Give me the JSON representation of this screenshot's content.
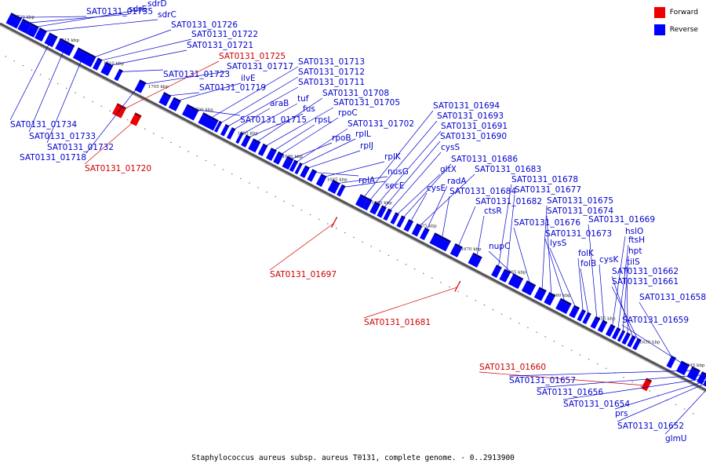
{
  "legend": {
    "forward_label": "Forward",
    "reverse_label": "Reverse",
    "forward_color": "#ee0000",
    "reverse_color": "#0000ff"
  },
  "caption": "Staphylococcus aureus subsp. aureus T0131, complete genome. - 0..2913900",
  "track": {
    "start_kbp": 1721,
    "end_kbp": 1642,
    "tick_labels": [
      {
        "kbp": 1720,
        "text": "1720 kbp"
      },
      {
        "kbp": 1715,
        "text": "1715 kbp"
      },
      {
        "kbp": 1710,
        "text": "1710 kbp"
      },
      {
        "kbp": 1705,
        "text": "1705 kbp"
      },
      {
        "kbp": 1700,
        "text": "1700 kbp"
      },
      {
        "kbp": 1695,
        "text": "1695 kbp"
      },
      {
        "kbp": 1690,
        "text": "1690 kbp"
      },
      {
        "kbp": 1685,
        "text": "1685 kbp"
      },
      {
        "kbp": 1680,
        "text": "1680 kbp"
      },
      {
        "kbp": 1675,
        "text": "1675 kbp"
      },
      {
        "kbp": 1670,
        "text": "1670 kbp"
      },
      {
        "kbp": 1665,
        "text": "1665 kbp"
      },
      {
        "kbp": 1660,
        "text": "1660 kbp"
      },
      {
        "kbp": 1655,
        "text": "1655 kbp"
      },
      {
        "kbp": 1650,
        "text": "1650 kbp"
      },
      {
        "kbp": 1645,
        "text": "1645 kbp"
      }
    ]
  },
  "genes": [
    {
      "kbp": 1720.5,
      "len": 1.2,
      "strand": "reverse",
      "label": "SAT0131_01735"
    },
    {
      "kbp": 1719.2,
      "len": 1.0,
      "strand": "reverse",
      "label": "sdrE"
    },
    {
      "kbp": 1718.2,
      "len": 0.8,
      "strand": "reverse",
      "label": "sdrD"
    },
    {
      "kbp": 1717.3,
      "len": 0.8,
      "strand": "reverse",
      "label": "sdrC"
    },
    {
      "kbp": 1716.2,
      "len": 0.9,
      "strand": "reverse",
      "label": "SAT0131_01734"
    },
    {
      "kbp": 1715.0,
      "len": 1.6,
      "strand": "reverse",
      "label": "SAT0131_01733"
    },
    {
      "kbp": 1713.0,
      "len": 1.6,
      "strand": "reverse",
      "label": "SAT0131_01732"
    },
    {
      "kbp": 1711.5,
      "len": 0.5,
      "strand": "reverse",
      "label": "SAT0131_01726"
    },
    {
      "kbp": 1710.8,
      "len": 0.5,
      "strand": "reverse",
      "label": "SAT0131_01722"
    },
    {
      "kbp": 1709.9,
      "len": 0.8,
      "strand": "reverse",
      "label": "SAT0131_01721"
    },
    {
      "kbp": 1708.4,
      "len": 0.4,
      "strand": "reverse",
      "label": "SAT0131_01723"
    },
    {
      "kbp": 1707.0,
      "len": 1.0,
      "strand": "forward",
      "label": "SAT0131_01725"
    },
    {
      "kbp": 1706.1,
      "len": 0.5,
      "strand": "reverse",
      "label": "SAT0131_01718"
    },
    {
      "kbp": 1705.7,
      "len": 0.3,
      "strand": "reverse",
      "label": "SAT0131_01717"
    },
    {
      "kbp": 1705.0,
      "len": 0.7,
      "strand": "forward",
      "label": "SAT0131_01720"
    },
    {
      "kbp": 1703.4,
      "len": 0.8,
      "strand": "reverse",
      "label": "SAT0131_01719"
    },
    {
      "kbp": 1702.3,
      "len": 0.8,
      "strand": "reverse",
      "label": "ilvE"
    },
    {
      "kbp": 1700.8,
      "len": 1.3,
      "strand": "reverse",
      "label": "SAT0131_01715"
    },
    {
      "kbp": 1699.0,
      "len": 1.7,
      "strand": "reverse",
      "label": "SAT0131_01713"
    },
    {
      "kbp": 1697.2,
      "len": 0.3,
      "strand": "reverse",
      "label": "SAT0131_01712"
    },
    {
      "kbp": 1696.5,
      "len": 0.4,
      "strand": "reverse",
      "label": "SAT0131_01711"
    },
    {
      "kbp": 1695.8,
      "len": 0.4,
      "strand": "reverse",
      "label": "araB"
    },
    {
      "kbp": 1694.8,
      "len": 0.3,
      "strand": "reverse",
      "label": "tuf"
    },
    {
      "kbp": 1694.2,
      "len": 0.5,
      "strand": "reverse",
      "label": "fus"
    },
    {
      "kbp": 1693.4,
      "len": 0.8,
      "strand": "reverse",
      "label": "SAT0131_01708"
    },
    {
      "kbp": 1692.3,
      "len": 0.5,
      "strand": "reverse",
      "label": "SAT0131_01705"
    },
    {
      "kbp": 1691.4,
      "len": 0.6,
      "strand": "reverse",
      "label": "rpsL"
    },
    {
      "kbp": 1690.6,
      "len": 0.6,
      "strand": "reverse",
      "label": "rpoC"
    },
    {
      "kbp": 1689.6,
      "len": 0.7,
      "strand": "reverse",
      "label": "rpoB"
    },
    {
      "kbp": 1688.8,
      "len": 0.4,
      "strand": "reverse",
      "label": "SAT0131_01702"
    },
    {
      "kbp": 1688.2,
      "len": 0.3,
      "strand": "reverse",
      "label": "rplL"
    },
    {
      "kbp": 1687.6,
      "len": 0.5,
      "strand": "reverse",
      "label": "rplJ"
    },
    {
      "kbp": 1686.8,
      "len": 0.5,
      "strand": "reverse",
      "label": "rplA"
    },
    {
      "kbp": 1685.8,
      "len": 0.6,
      "strand": "reverse",
      "label": "rplK"
    },
    {
      "kbp": 1684.5,
      "len": 0.8,
      "strand": "reverse",
      "label": "nusG"
    },
    {
      "kbp": 1683.5,
      "len": 0.4,
      "strand": "reverse",
      "label": "secE"
    },
    {
      "kbp": 1682.5,
      "len": 0.1,
      "strand": "forward",
      "label": "SAT0131_01697"
    },
    {
      "kbp": 1681.4,
      "len": 0.8,
      "strand": "reverse",
      "label": "SAT0131_01694"
    },
    {
      "kbp": 1680.6,
      "len": 0.5,
      "strand": "reverse",
      "label": "SAT0131_01693"
    },
    {
      "kbp": 1679.8,
      "len": 0.6,
      "strand": "reverse",
      "label": "SAT0131_01691"
    },
    {
      "kbp": 1679.0,
      "len": 0.5,
      "strand": "reverse",
      "label": "SAT0131_01690"
    },
    {
      "kbp": 1678.3,
      "len": 0.4,
      "strand": "reverse",
      "label": "cysS"
    },
    {
      "kbp": 1677.5,
      "len": 0.4,
      "strand": "reverse",
      "label": "gltX"
    },
    {
      "kbp": 1676.8,
      "len": 0.4,
      "strand": "reverse",
      "label": "SAT0131_01686"
    },
    {
      "kbp": 1676.0,
      "len": 0.5,
      "strand": "reverse",
      "label": "cysE"
    },
    {
      "kbp": 1675.1,
      "len": 0.6,
      "strand": "reverse",
      "label": "SAT0131_01683"
    },
    {
      "kbp": 1674.2,
      "len": 0.5,
      "strand": "reverse",
      "label": "radA"
    },
    {
      "kbp": 1673.1,
      "len": 1.8,
      "strand": "reverse",
      "label": "SAT0131_01684"
    },
    {
      "kbp": 1670.8,
      "len": 0.8,
      "strand": "reverse",
      "label": "SAT0131_01682"
    },
    {
      "kbp": 1668.7,
      "len": 0.1,
      "strand": "forward",
      "label": "SAT0131_01681"
    },
    {
      "kbp": 1668.8,
      "len": 1.0,
      "strand": "reverse",
      "label": "ctsR"
    },
    {
      "kbp": 1666.2,
      "len": 0.6,
      "strand": "reverse",
      "label": "SAT0131_01678"
    },
    {
      "kbp": 1665.3,
      "len": 0.7,
      "strand": "reverse",
      "label": "SAT0131_01677"
    },
    {
      "kbp": 1664.3,
      "len": 1.1,
      "strand": "reverse",
      "label": "nupC"
    },
    {
      "kbp": 1662.8,
      "len": 1.0,
      "strand": "reverse",
      "label": "SAT0131_01676"
    },
    {
      "kbp": 1661.4,
      "len": 0.8,
      "strand": "reverse",
      "label": "SAT0131_01675"
    },
    {
      "kbp": 1660.3,
      "len": 0.7,
      "strand": "reverse",
      "label": "SAT0131_01674"
    },
    {
      "kbp": 1659.0,
      "len": 1.2,
      "strand": "reverse",
      "label": "SAT0131_01673"
    },
    {
      "kbp": 1657.5,
      "len": 0.6,
      "strand": "reverse",
      "label": "lysS"
    },
    {
      "kbp": 1656.6,
      "len": 0.4,
      "strand": "reverse",
      "label": "folK"
    },
    {
      "kbp": 1656.0,
      "len": 0.4,
      "strand": "reverse",
      "label": "folB"
    },
    {
      "kbp": 1655.1,
      "len": 0.5,
      "strand": "reverse",
      "label": "SAT0131_01669"
    },
    {
      "kbp": 1654.3,
      "len": 0.5,
      "strand": "reverse",
      "label": "cysK"
    },
    {
      "kbp": 1653.4,
      "len": 0.5,
      "strand": "reverse",
      "label": "hslO"
    },
    {
      "kbp": 1652.7,
      "len": 0.4,
      "strand": "reverse",
      "label": "ftsH"
    },
    {
      "kbp": 1652.1,
      "len": 0.3,
      "strand": "reverse",
      "label": "hpt"
    },
    {
      "kbp": 1651.6,
      "len": 0.4,
      "strand": "reverse",
      "label": "tilS"
    },
    {
      "kbp": 1651.0,
      "len": 0.4,
      "strand": "reverse",
      "label": "SAT0131_01662"
    },
    {
      "kbp": 1650.4,
      "len": 0.4,
      "strand": "reverse",
      "label": "SAT0131_01661"
    },
    {
      "kbp": 1647.8,
      "len": 0.6,
      "strand": "forward",
      "label": "SAT0131_01660"
    },
    {
      "kbp": 1646.6,
      "len": 0.5,
      "strand": "reverse",
      "label": "SAT0131_01658"
    },
    {
      "kbp": 1645.5,
      "len": 0.9,
      "strand": "reverse",
      "label": "SAT0131_01659"
    },
    {
      "kbp": 1644.3,
      "len": 0.9,
      "strand": "reverse",
      "label": "SAT0131_01657"
    },
    {
      "kbp": 1643.2,
      "len": 0.6,
      "strand": "reverse",
      "label": "SAT0131_01656"
    },
    {
      "kbp": 1642.5,
      "len": 0.5,
      "strand": "reverse",
      "label": "SAT0131_01654"
    },
    {
      "kbp": 1642.1,
      "len": 0.3,
      "strand": "reverse",
      "label": "prs"
    },
    {
      "kbp": 1641.9,
      "len": 0.2,
      "strand": "reverse",
      "label": "SAT0131_01652"
    },
    {
      "kbp": 1641.7,
      "len": 0.1,
      "strand": "reverse",
      "label": "glmU"
    }
  ]
}
